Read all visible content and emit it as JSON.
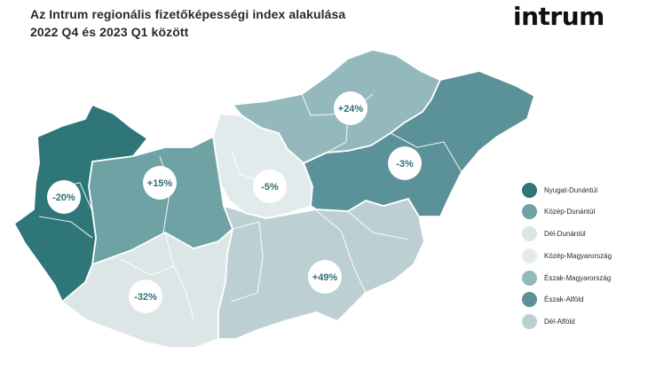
{
  "title_line1": "Az Intrum regionális fizetőképességi index alakulása",
  "title_line2": "2022 Q4  és 2023 Q1 között",
  "logo": "intrum",
  "regions": [
    {
      "id": "nyugat-dunantul",
      "name": "Nyugat-Dunántúl",
      "change": "-20%",
      "color": "#2f7678"
    },
    {
      "id": "kozep-dunantul",
      "name": "Közép-Dunántúl",
      "change": "+15%",
      "color": "#6fa2a4"
    },
    {
      "id": "del-dunantul",
      "name": "Dél-Dunántúl",
      "change": "-32%",
      "color": "#dce6e6"
    },
    {
      "id": "kozep-magyarorszag",
      "name": "Közép-Magyarország",
      "change": "-5%",
      "color": "#e2ebeb"
    },
    {
      "id": "eszak-magyarorszag",
      "name": "Észak-Magyarország",
      "change": "+24%",
      "color": "#94b9bc"
    },
    {
      "id": "eszak-alfold",
      "name": "Észak-Alföld",
      "change": "-3%",
      "color": "#5b9199"
    },
    {
      "id": "del-alfold",
      "name": "Dél-Alföld",
      "change": "+49%",
      "color": "#bcd0d3"
    }
  ]
}
